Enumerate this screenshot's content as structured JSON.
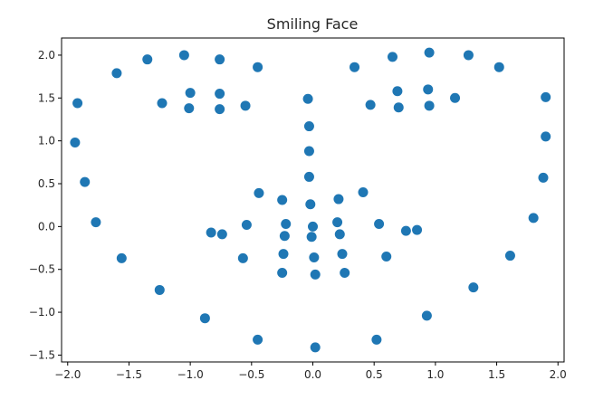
{
  "chart_data": {
    "type": "scatter",
    "title": "Smiling Face",
    "xlabel": "",
    "ylabel": "",
    "xlim": [
      -2.05,
      2.05
    ],
    "ylim": [
      -1.58,
      2.2
    ],
    "xticks": [
      -2.0,
      -1.5,
      -1.0,
      -0.5,
      0.0,
      0.5,
      1.0,
      1.5,
      2.0
    ],
    "xtick_labels": [
      "−2.0",
      "−1.5",
      "−1.0",
      "−0.5",
      "0.0",
      "0.5",
      "1.0",
      "1.5",
      "2.0"
    ],
    "yticks": [
      -1.5,
      -1.0,
      -0.5,
      0.0,
      0.5,
      1.0,
      1.5,
      2.0
    ],
    "ytick_labels": [
      "−1.5",
      "−1.0",
      "−0.5",
      "0.0",
      "0.5",
      "1.0",
      "1.5",
      "2.0"
    ],
    "grid": false,
    "marker_color": "#1f77b4",
    "points": [
      [
        -1.05,
        2.0
      ],
      [
        -1.35,
        1.95
      ],
      [
        -1.6,
        1.79
      ],
      [
        -1.92,
        1.44
      ],
      [
        -1.94,
        0.98
      ],
      [
        -1.86,
        0.52
      ],
      [
        -1.77,
        0.05
      ],
      [
        -1.56,
        -0.37
      ],
      [
        -1.25,
        -0.74
      ],
      [
        -0.88,
        -1.07
      ],
      [
        -0.45,
        -1.32
      ],
      [
        0.02,
        -1.41
      ],
      [
        0.52,
        -1.32
      ],
      [
        0.93,
        -1.04
      ],
      [
        1.31,
        -0.71
      ],
      [
        1.61,
        -0.34
      ],
      [
        1.8,
        0.1
      ],
      [
        1.88,
        0.57
      ],
      [
        1.9,
        1.05
      ],
      [
        1.9,
        1.51
      ],
      [
        1.52,
        1.86
      ],
      [
        1.27,
        2.0
      ],
      [
        0.95,
        2.03
      ],
      [
        0.65,
        1.98
      ],
      [
        -0.76,
        1.95
      ],
      [
        -0.45,
        1.86
      ],
      [
        0.34,
        1.86
      ],
      [
        -1.23,
        1.44
      ],
      [
        -1.0,
        1.56
      ],
      [
        -1.01,
        1.38
      ],
      [
        -0.76,
        1.55
      ],
      [
        -0.76,
        1.37
      ],
      [
        -0.55,
        1.41
      ],
      [
        0.47,
        1.42
      ],
      [
        0.69,
        1.58
      ],
      [
        0.7,
        1.39
      ],
      [
        0.94,
        1.6
      ],
      [
        0.95,
        1.41
      ],
      [
        1.16,
        1.5
      ],
      [
        -0.04,
        1.49
      ],
      [
        -0.03,
        1.17
      ],
      [
        -0.03,
        0.88
      ],
      [
        -0.03,
        0.58
      ],
      [
        -0.02,
        0.26
      ],
      [
        -0.44,
        0.39
      ],
      [
        -0.25,
        0.31
      ],
      [
        0.21,
        0.32
      ],
      [
        0.41,
        0.4
      ],
      [
        -0.54,
        0.02
      ],
      [
        -0.22,
        0.03
      ],
      [
        0.0,
        0.0
      ],
      [
        0.2,
        0.05
      ],
      [
        0.54,
        0.03
      ],
      [
        -0.83,
        -0.07
      ],
      [
        -0.74,
        -0.09
      ],
      [
        -0.23,
        -0.11
      ],
      [
        -0.01,
        -0.12
      ],
      [
        0.22,
        -0.09
      ],
      [
        0.76,
        -0.05
      ],
      [
        0.85,
        -0.04
      ],
      [
        -0.57,
        -0.37
      ],
      [
        -0.24,
        -0.32
      ],
      [
        0.24,
        -0.32
      ],
      [
        0.6,
        -0.35
      ],
      [
        -0.25,
        -0.54
      ],
      [
        0.01,
        -0.36
      ],
      [
        0.26,
        -0.54
      ],
      [
        0.02,
        -0.56
      ]
    ]
  }
}
